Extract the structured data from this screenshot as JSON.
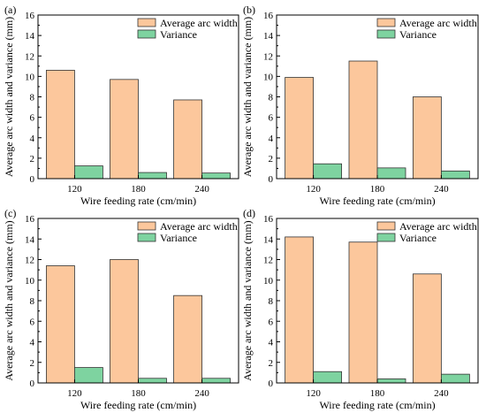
{
  "colors": {
    "avg": "#FCC79C",
    "var": "#7ED3A0",
    "stroke": "#333333"
  },
  "chart_data": [
    {
      "panel_label": "(a)",
      "type": "bar",
      "categories": [
        "120",
        "180",
        "240"
      ],
      "series": [
        {
          "name": "Average arc width",
          "values": [
            10.6,
            9.7,
            7.7
          ]
        },
        {
          "name": "Variance",
          "values": [
            1.25,
            0.6,
            0.55
          ]
        }
      ],
      "xlabel": "Wire feeding rate (cm/min)",
      "ylabel": "Average arc width and variance (mm)",
      "ylim": [
        0,
        16
      ],
      "yticks": [
        "0",
        "2",
        "4",
        "6",
        "8",
        "10",
        "12",
        "14",
        "16"
      ],
      "legend_position": "top-right"
    },
    {
      "panel_label": "(b)",
      "type": "bar",
      "categories": [
        "120",
        "180",
        "240"
      ],
      "series": [
        {
          "name": "Average arc width",
          "values": [
            9.9,
            11.5,
            8.0
          ]
        },
        {
          "name": "Variance",
          "values": [
            1.45,
            1.05,
            0.75
          ]
        }
      ],
      "xlabel": "Wire feeding rate (cm/min)",
      "ylabel": "Average arc width and variance (mm)",
      "ylim": [
        0,
        16
      ],
      "yticks": [
        "0",
        "2",
        "4",
        "6",
        "8",
        "10",
        "12",
        "14",
        "16"
      ],
      "legend_position": "top-right"
    },
    {
      "panel_label": "(c)",
      "type": "bar",
      "categories": [
        "120",
        "180",
        "240"
      ],
      "series": [
        {
          "name": "Average arc width",
          "values": [
            11.4,
            12.0,
            8.5
          ]
        },
        {
          "name": "Variance",
          "values": [
            1.5,
            0.45,
            0.45
          ]
        }
      ],
      "xlabel": "Wire feeding rate (cm/min)",
      "ylabel": "Average arc width and variance (mm)",
      "ylim": [
        0,
        16
      ],
      "yticks": [
        "0",
        "2",
        "4",
        "6",
        "8",
        "10",
        "12",
        "14",
        "16"
      ],
      "legend_position": "top-right"
    },
    {
      "panel_label": "(d)",
      "type": "bar",
      "categories": [
        "120",
        "180",
        "240"
      ],
      "series": [
        {
          "name": "Average arc width",
          "values": [
            14.2,
            13.7,
            10.6
          ]
        },
        {
          "name": "Variance",
          "values": [
            1.1,
            0.4,
            0.85
          ]
        }
      ],
      "xlabel": "Wire feeding rate (cm/min)",
      "ylabel": "Average arc width and variance (mm)",
      "ylim": [
        0,
        16
      ],
      "yticks": [
        "0",
        "2",
        "4",
        "6",
        "8",
        "10",
        "12",
        "14",
        "16"
      ],
      "legend_position": "top-right"
    }
  ]
}
